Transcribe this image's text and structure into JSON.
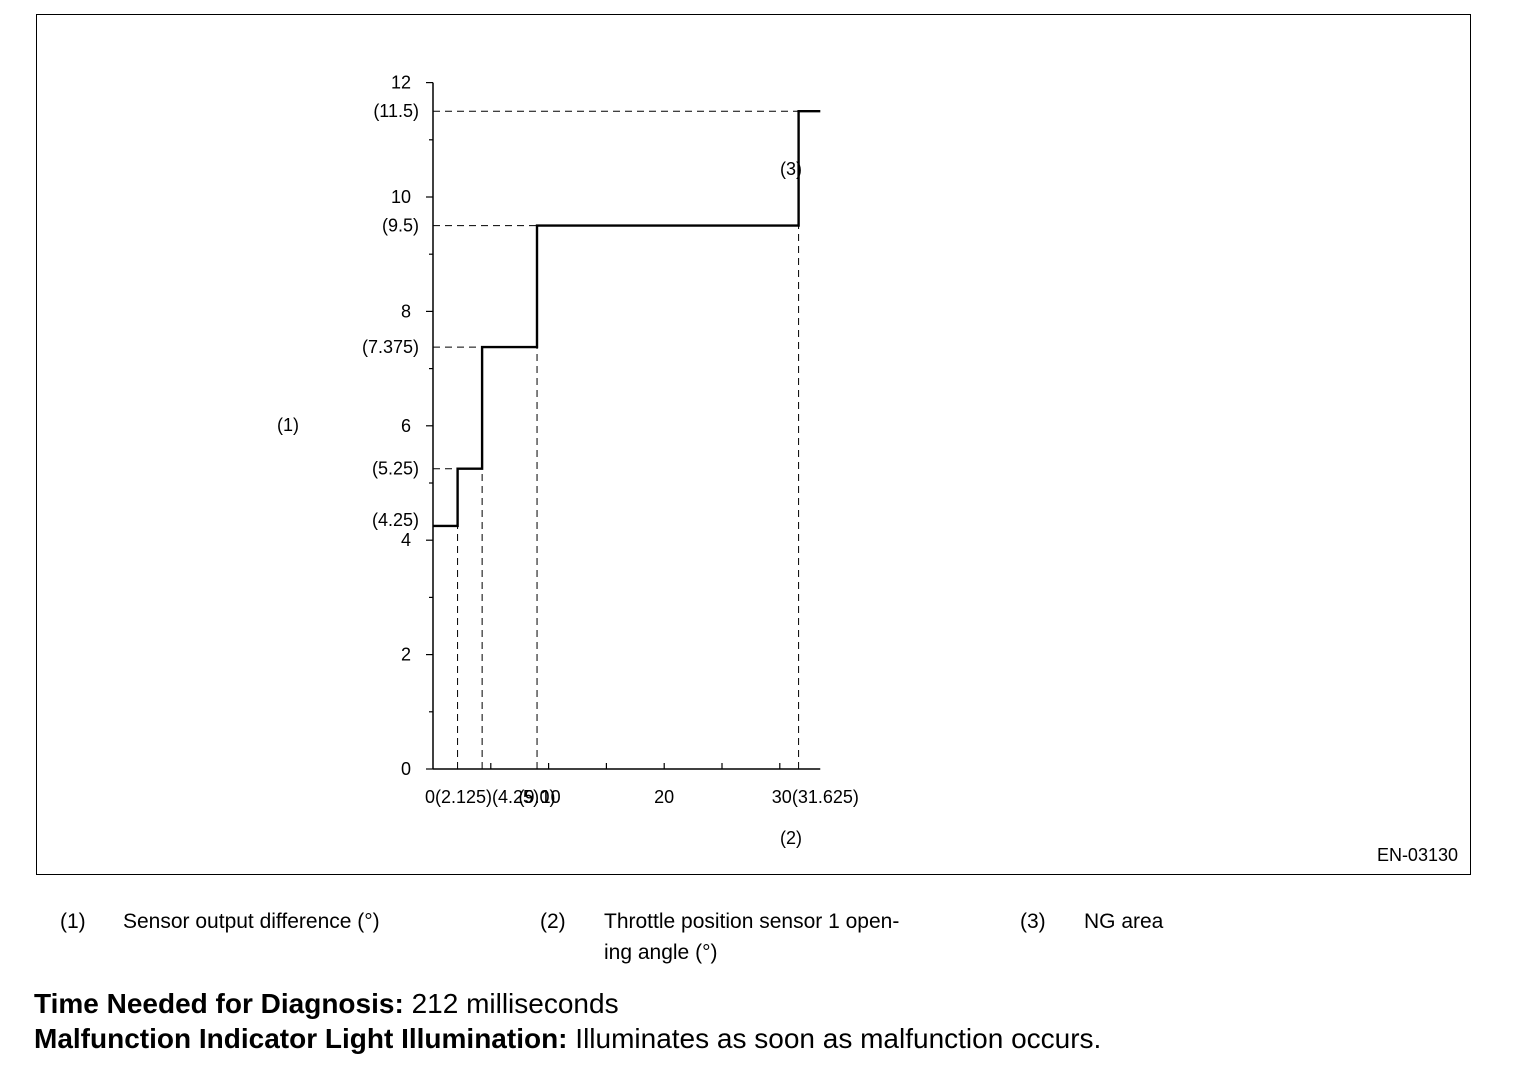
{
  "figure": {
    "id": "EN-03130",
    "y_ref": "(1)",
    "x_ref": "(2)",
    "area_ref": "(3)"
  },
  "chart_data": {
    "type": "line",
    "step": true,
    "y_tick_labels": [
      "0",
      "2",
      "4",
      "6",
      "8",
      "10",
      "12"
    ],
    "y_ticks": [
      0,
      2,
      4,
      6,
      8,
      10,
      12
    ],
    "x_ticks": [
      0,
      10,
      20,
      30
    ],
    "x_axis_label_text": "0(2.125)(4.25)   (9.0) 10",
    "x_tick_labels": [
      {
        "text": "0(2.125)(4.25)",
        "x": 0
      },
      {
        "text": "(9.0)",
        "x": 9.0
      },
      {
        "text": "10",
        "x": 10
      },
      {
        "text": "20",
        "x": 20
      },
      {
        "text": "30(31.625)",
        "x": 30
      }
    ],
    "y_threshold_labels": [
      "(11.5)",
      "(9.5)",
      "(7.375)",
      "(5.25)",
      "(4.25)"
    ],
    "xlim": [
      0,
      33.5
    ],
    "ylim": [
      0,
      12
    ],
    "series": [
      {
        "points": [
          [
            0,
            4.25
          ],
          [
            2.125,
            4.25
          ],
          [
            2.125,
            5.25
          ],
          [
            4.25,
            5.25
          ],
          [
            4.25,
            7.375
          ],
          [
            9.0,
            7.375
          ],
          [
            9.0,
            9.5
          ],
          [
            31.625,
            9.5
          ],
          [
            31.625,
            11.5
          ],
          [
            33.5,
            11.5
          ]
        ]
      }
    ],
    "reference_lines": {
      "horizontal": [
        4.25,
        5.25,
        7.375,
        9.5,
        11.5
      ],
      "vertical": [
        2.125,
        4.25,
        9.0,
        31.625
      ]
    }
  },
  "legend": [
    {
      "num": "(1)",
      "text": "Sensor output difference (°)"
    },
    {
      "num": "(2)",
      "text_line1": "Throttle position sensor 1 open-",
      "text_line2": "ing angle (°)"
    },
    {
      "num": "(3)",
      "text": "NG area"
    }
  ],
  "info": {
    "time_label": "Time Needed for Diagnosis:",
    "time_value": " 212 milliseconds",
    "mil_label": "Malfunction Indicator Light Illumination:",
    "mil_value": " Illuminates as soon as malfunction occurs."
  }
}
